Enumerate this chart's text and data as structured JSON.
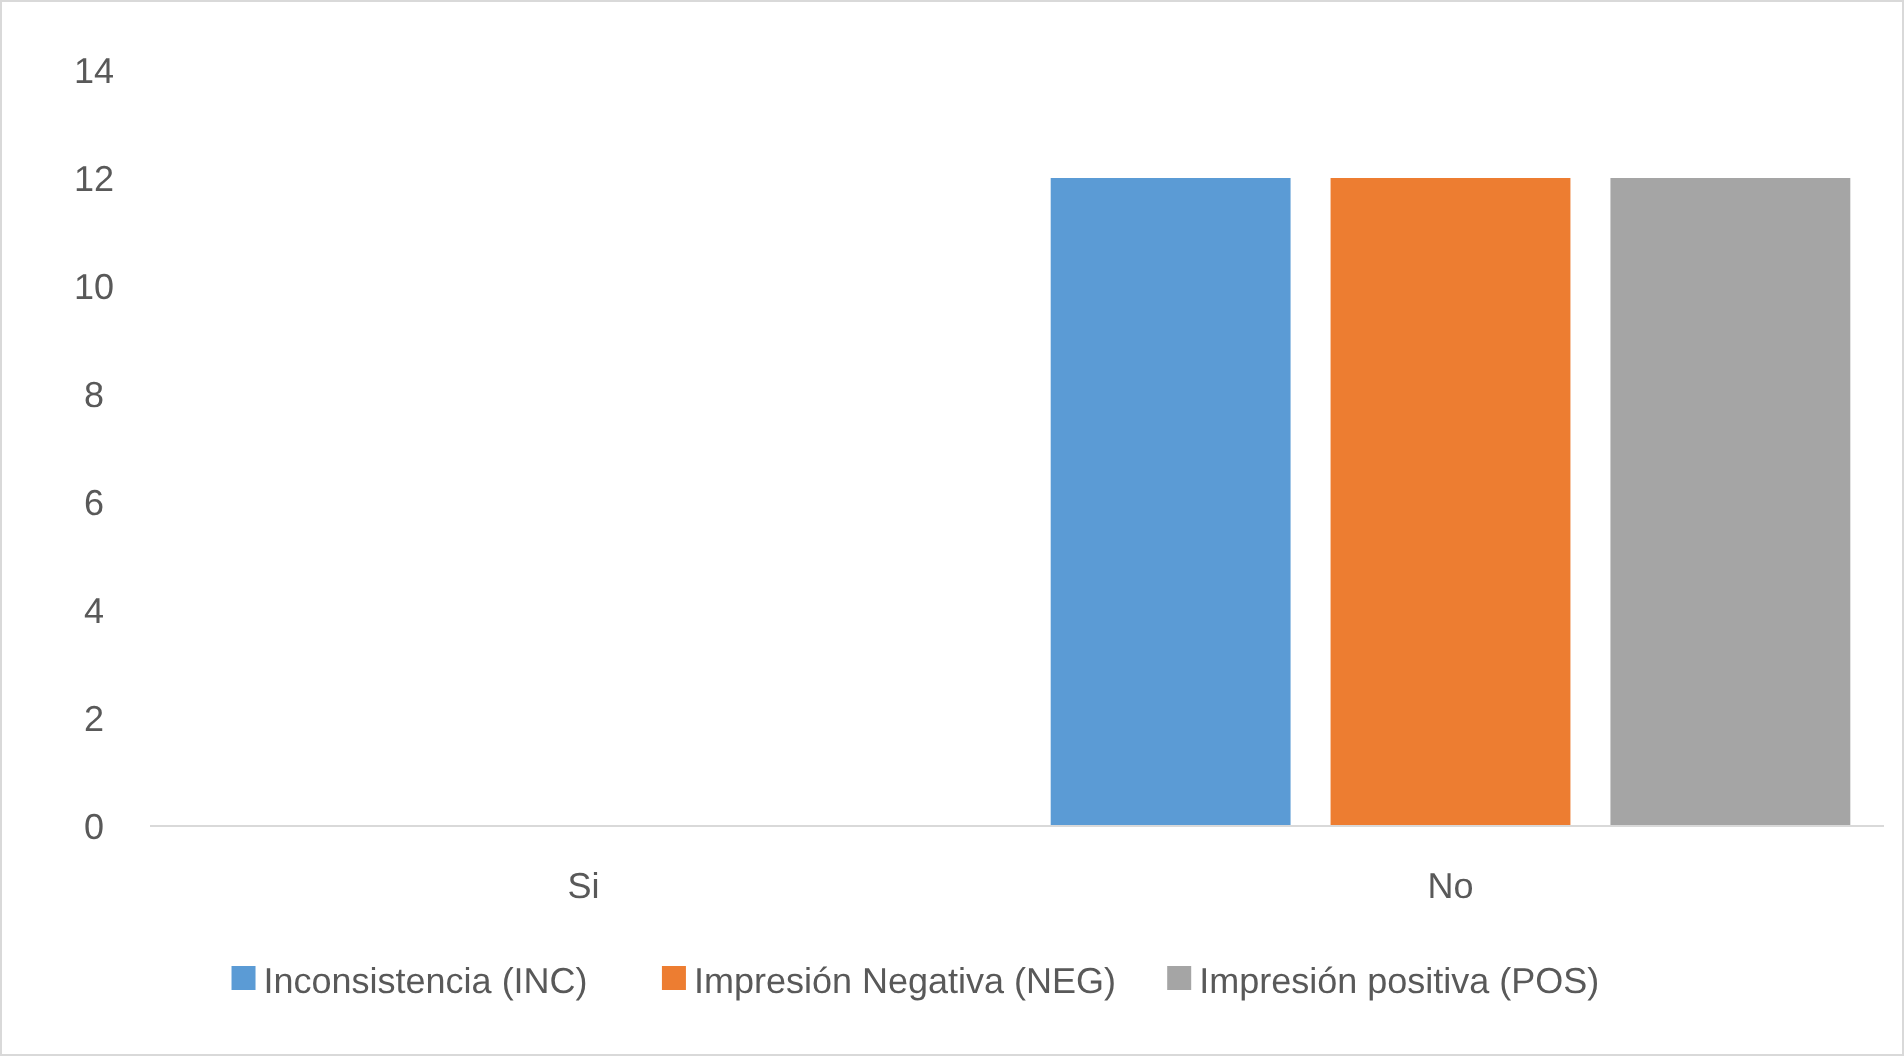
{
  "chart_data": {
    "type": "bar",
    "categories": [
      "Si",
      "No"
    ],
    "series": [
      {
        "name": "Inconsistencia (INC)",
        "color": "#5b9bd5",
        "values": [
          0,
          12
        ]
      },
      {
        "name": "Impresión Negativa (NEG)",
        "color": "#ed7d31",
        "values": [
          0,
          12
        ]
      },
      {
        "name": "Impresión positiva (POS)",
        "color": "#a5a5a5",
        "values": [
          0,
          12
        ]
      }
    ],
    "ylim": [
      0,
      14
    ],
    "yticks": [
      0,
      2,
      4,
      6,
      8,
      10,
      12,
      14
    ],
    "grid": false,
    "legend": "bottom"
  }
}
